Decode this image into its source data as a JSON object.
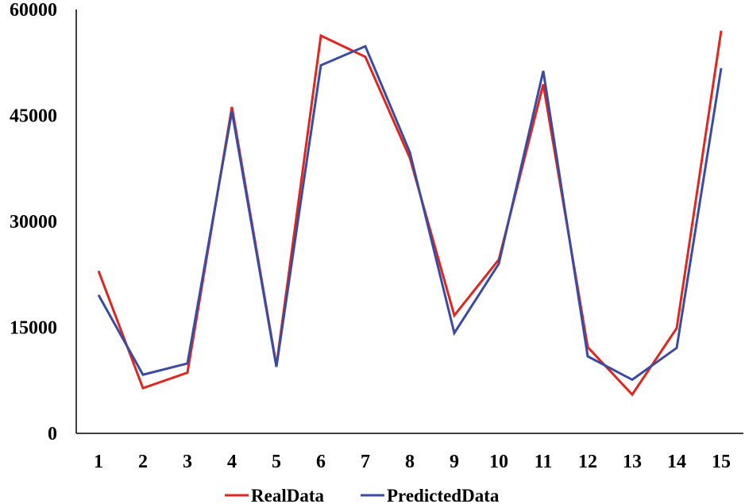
{
  "chart_data": {
    "type": "line",
    "title": "",
    "xlabel": "",
    "ylabel": "",
    "x": [
      1,
      2,
      3,
      4,
      5,
      6,
      7,
      8,
      9,
      10,
      11,
      12,
      13,
      14,
      15
    ],
    "ylim": [
      0,
      60000
    ],
    "yticks": [
      0,
      15000,
      30000,
      45000,
      60000
    ],
    "grid": false,
    "legend_position": "bottom",
    "series": [
      {
        "name": "RealData",
        "color": "#e0261d",
        "values": [
          23000,
          6400,
          8600,
          46200,
          9600,
          56300,
          53300,
          39000,
          16700,
          24600,
          49400,
          12200,
          5500,
          14900,
          57000
        ]
      },
      {
        "name": "PredictedData",
        "color": "#3a4ba6",
        "values": [
          19600,
          8300,
          9900,
          45600,
          9400,
          52100,
          54800,
          39800,
          14200,
          24000,
          51300,
          10900,
          7600,
          12100,
          51700
        ]
      }
    ]
  }
}
